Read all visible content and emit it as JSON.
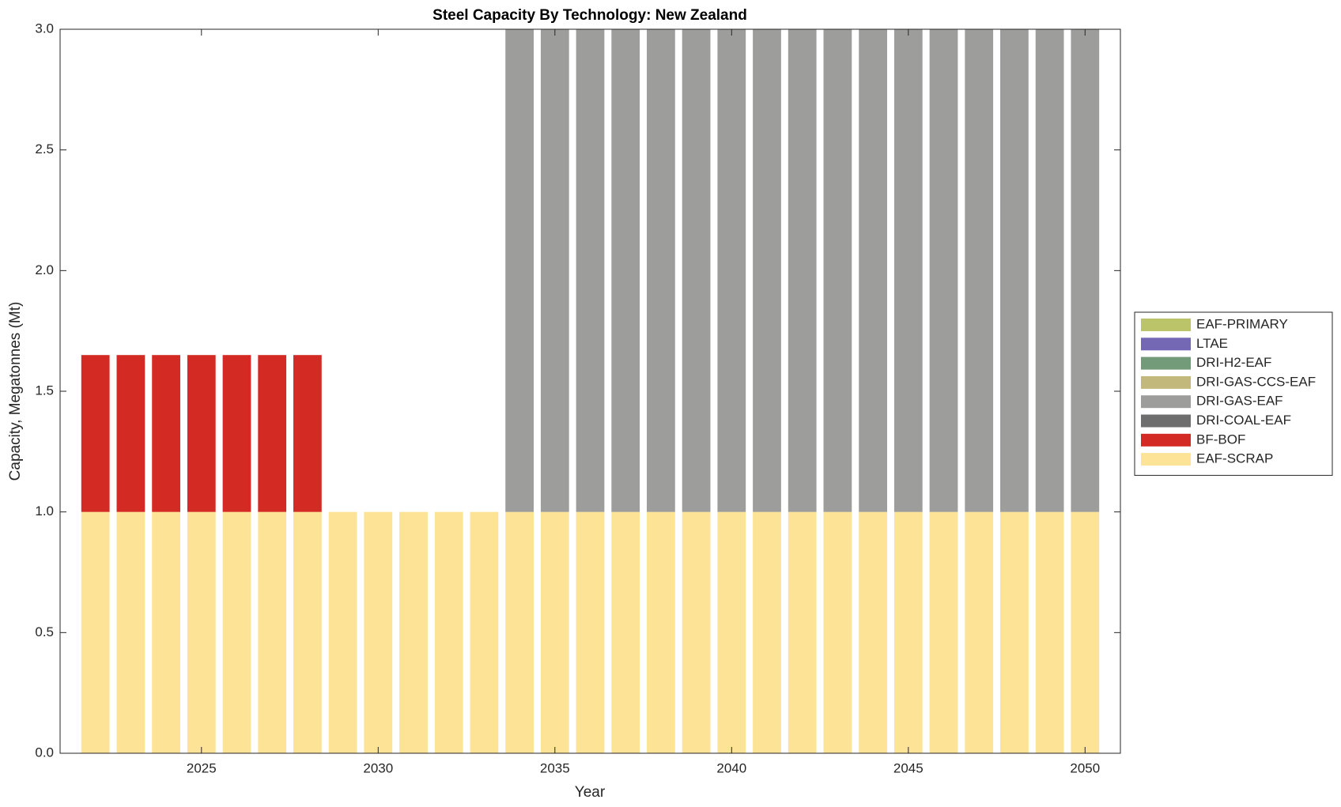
{
  "chart_data": {
    "type": "bar",
    "stacked": true,
    "title": "Steel Capacity By Technology: New Zealand",
    "x_label": "Year",
    "y_label": "Capacity, Megatonnes (Mt)",
    "x": [
      2022,
      2023,
      2024,
      2025,
      2026,
      2027,
      2028,
      2029,
      2030,
      2031,
      2032,
      2033,
      2034,
      2035,
      2036,
      2037,
      2038,
      2039,
      2040,
      2041,
      2042,
      2043,
      2044,
      2045,
      2046,
      2047,
      2048,
      2049,
      2050
    ],
    "xlim": [
      2021,
      2051
    ],
    "xticks": [
      2025,
      2030,
      2035,
      2040,
      2045,
      2050
    ],
    "ylim": [
      0,
      3
    ],
    "yticks": [
      {
        "value": 0,
        "label": "0.0"
      },
      0.5,
      {
        "value": 1,
        "label": "1.0"
      },
      1.5,
      {
        "value": 2,
        "label": "2.0"
      },
      2.5,
      {
        "value": 3,
        "label": "3.0"
      }
    ],
    "grid": false,
    "legend_position": "right",
    "series": [
      {
        "name": "EAF-SCRAP",
        "color": "#fde396",
        "values": [
          1,
          1,
          1,
          1,
          1,
          1,
          1,
          1,
          1,
          1,
          1,
          1,
          1,
          1,
          1,
          1,
          1,
          1,
          1,
          1,
          1,
          1,
          1,
          1,
          1,
          1,
          1,
          1,
          1
        ]
      },
      {
        "name": "BF-BOF",
        "color": "#d42a24",
        "values": [
          0.65,
          0.65,
          0.65,
          0.65,
          0.65,
          0.65,
          0.65,
          0,
          0,
          0,
          0,
          0,
          0,
          0,
          0,
          0,
          0,
          0,
          0,
          0,
          0,
          0,
          0,
          0,
          0,
          0,
          0,
          0,
          0
        ]
      },
      {
        "name": "DRI-COAL-EAF",
        "color": "#6e6e6e",
        "values": [
          0,
          0,
          0,
          0,
          0,
          0,
          0,
          0,
          0,
          0,
          0,
          0,
          0,
          0,
          0,
          0,
          0,
          0,
          0,
          0,
          0,
          0,
          0,
          0,
          0,
          0,
          0,
          0,
          0
        ]
      },
      {
        "name": "DRI-GAS-EAF",
        "color": "#9d9d9c",
        "values": [
          0,
          0,
          0,
          0,
          0,
          0,
          0,
          0,
          0,
          0,
          0,
          0,
          2,
          2,
          2,
          2,
          2,
          2,
          2,
          2,
          2,
          2,
          2,
          2,
          2,
          2,
          2,
          2,
          2
        ]
      },
      {
        "name": "DRI-GAS-CCS-EAF",
        "color": "#c2b87c",
        "values": [
          0,
          0,
          0,
          0,
          0,
          0,
          0,
          0,
          0,
          0,
          0,
          0,
          0,
          0,
          0,
          0,
          0,
          0,
          0,
          0,
          0,
          0,
          0,
          0,
          0,
          0,
          0,
          0,
          0
        ]
      },
      {
        "name": "DRI-H2-EAF",
        "color": "#739a79",
        "values": [
          0,
          0,
          0,
          0,
          0,
          0,
          0,
          0,
          0,
          0,
          0,
          0,
          0,
          0,
          0,
          0,
          0,
          0,
          0,
          0,
          0,
          0,
          0,
          0,
          0,
          0,
          0,
          0,
          0
        ]
      },
      {
        "name": "LTAE",
        "color": "#7468b5",
        "values": [
          0,
          0,
          0,
          0,
          0,
          0,
          0,
          0,
          0,
          0,
          0,
          0,
          0,
          0,
          0,
          0,
          0,
          0,
          0,
          0,
          0,
          0,
          0,
          0,
          0,
          0,
          0,
          0,
          0
        ]
      },
      {
        "name": "EAF-PRIMARY",
        "color": "#bcc46a",
        "values": [
          0,
          0,
          0,
          0,
          0,
          0,
          0,
          0,
          0,
          0,
          0,
          0,
          0,
          0,
          0,
          0,
          0,
          0,
          0,
          0,
          0,
          0,
          0,
          0,
          0,
          0,
          0,
          0,
          0
        ]
      }
    ]
  }
}
